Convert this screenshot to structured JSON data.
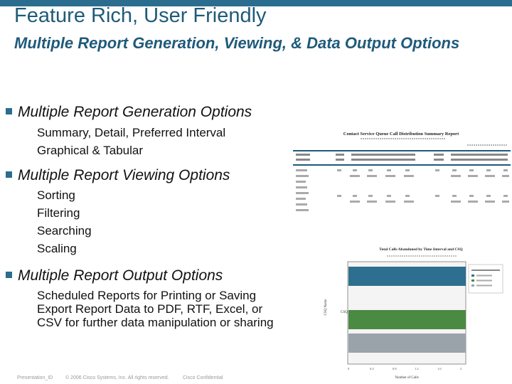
{
  "slide": {
    "title": "Feature Rich, User Friendly",
    "subtitle": "Multiple Report Generation, Viewing, & Data Output Options",
    "sections": [
      {
        "heading": "Multiple Report Generation Options",
        "items": [
          "Summary, Detail, Preferred Interval",
          "Graphical & Tabular"
        ]
      },
      {
        "heading": "Multiple Report Viewing Options",
        "items": [
          "Sorting",
          "Filtering",
          "Searching",
          "Scaling"
        ]
      },
      {
        "heading": "Multiple Report Output Options",
        "items": [
          "Scheduled Reports for Printing or Saving",
          "Export Report Data to PDF, RTF, Excel, or",
          "CSV for further data manipulation or sharing"
        ]
      }
    ],
    "footer": {
      "id": "Presentation_ID",
      "copyright": "© 2006 Cisco Systems, Inc. All rights reserved.",
      "confidential": "Cisco Confidential"
    }
  },
  "report_thumbnail": {
    "title": "Contact Service Queue Call Distribution Summary Report",
    "accent_color": "#1f5a7a"
  },
  "chart_thumbnail": {
    "title": "Total Calls Abandoned by Time Interval and CSQ",
    "category": "CSQ",
    "y_axis": "CSQ Name",
    "x_axis": "Number of Calls",
    "series_colors": [
      "#2e6f8f",
      "#4a8a43",
      "#9aa3aa"
    ]
  }
}
